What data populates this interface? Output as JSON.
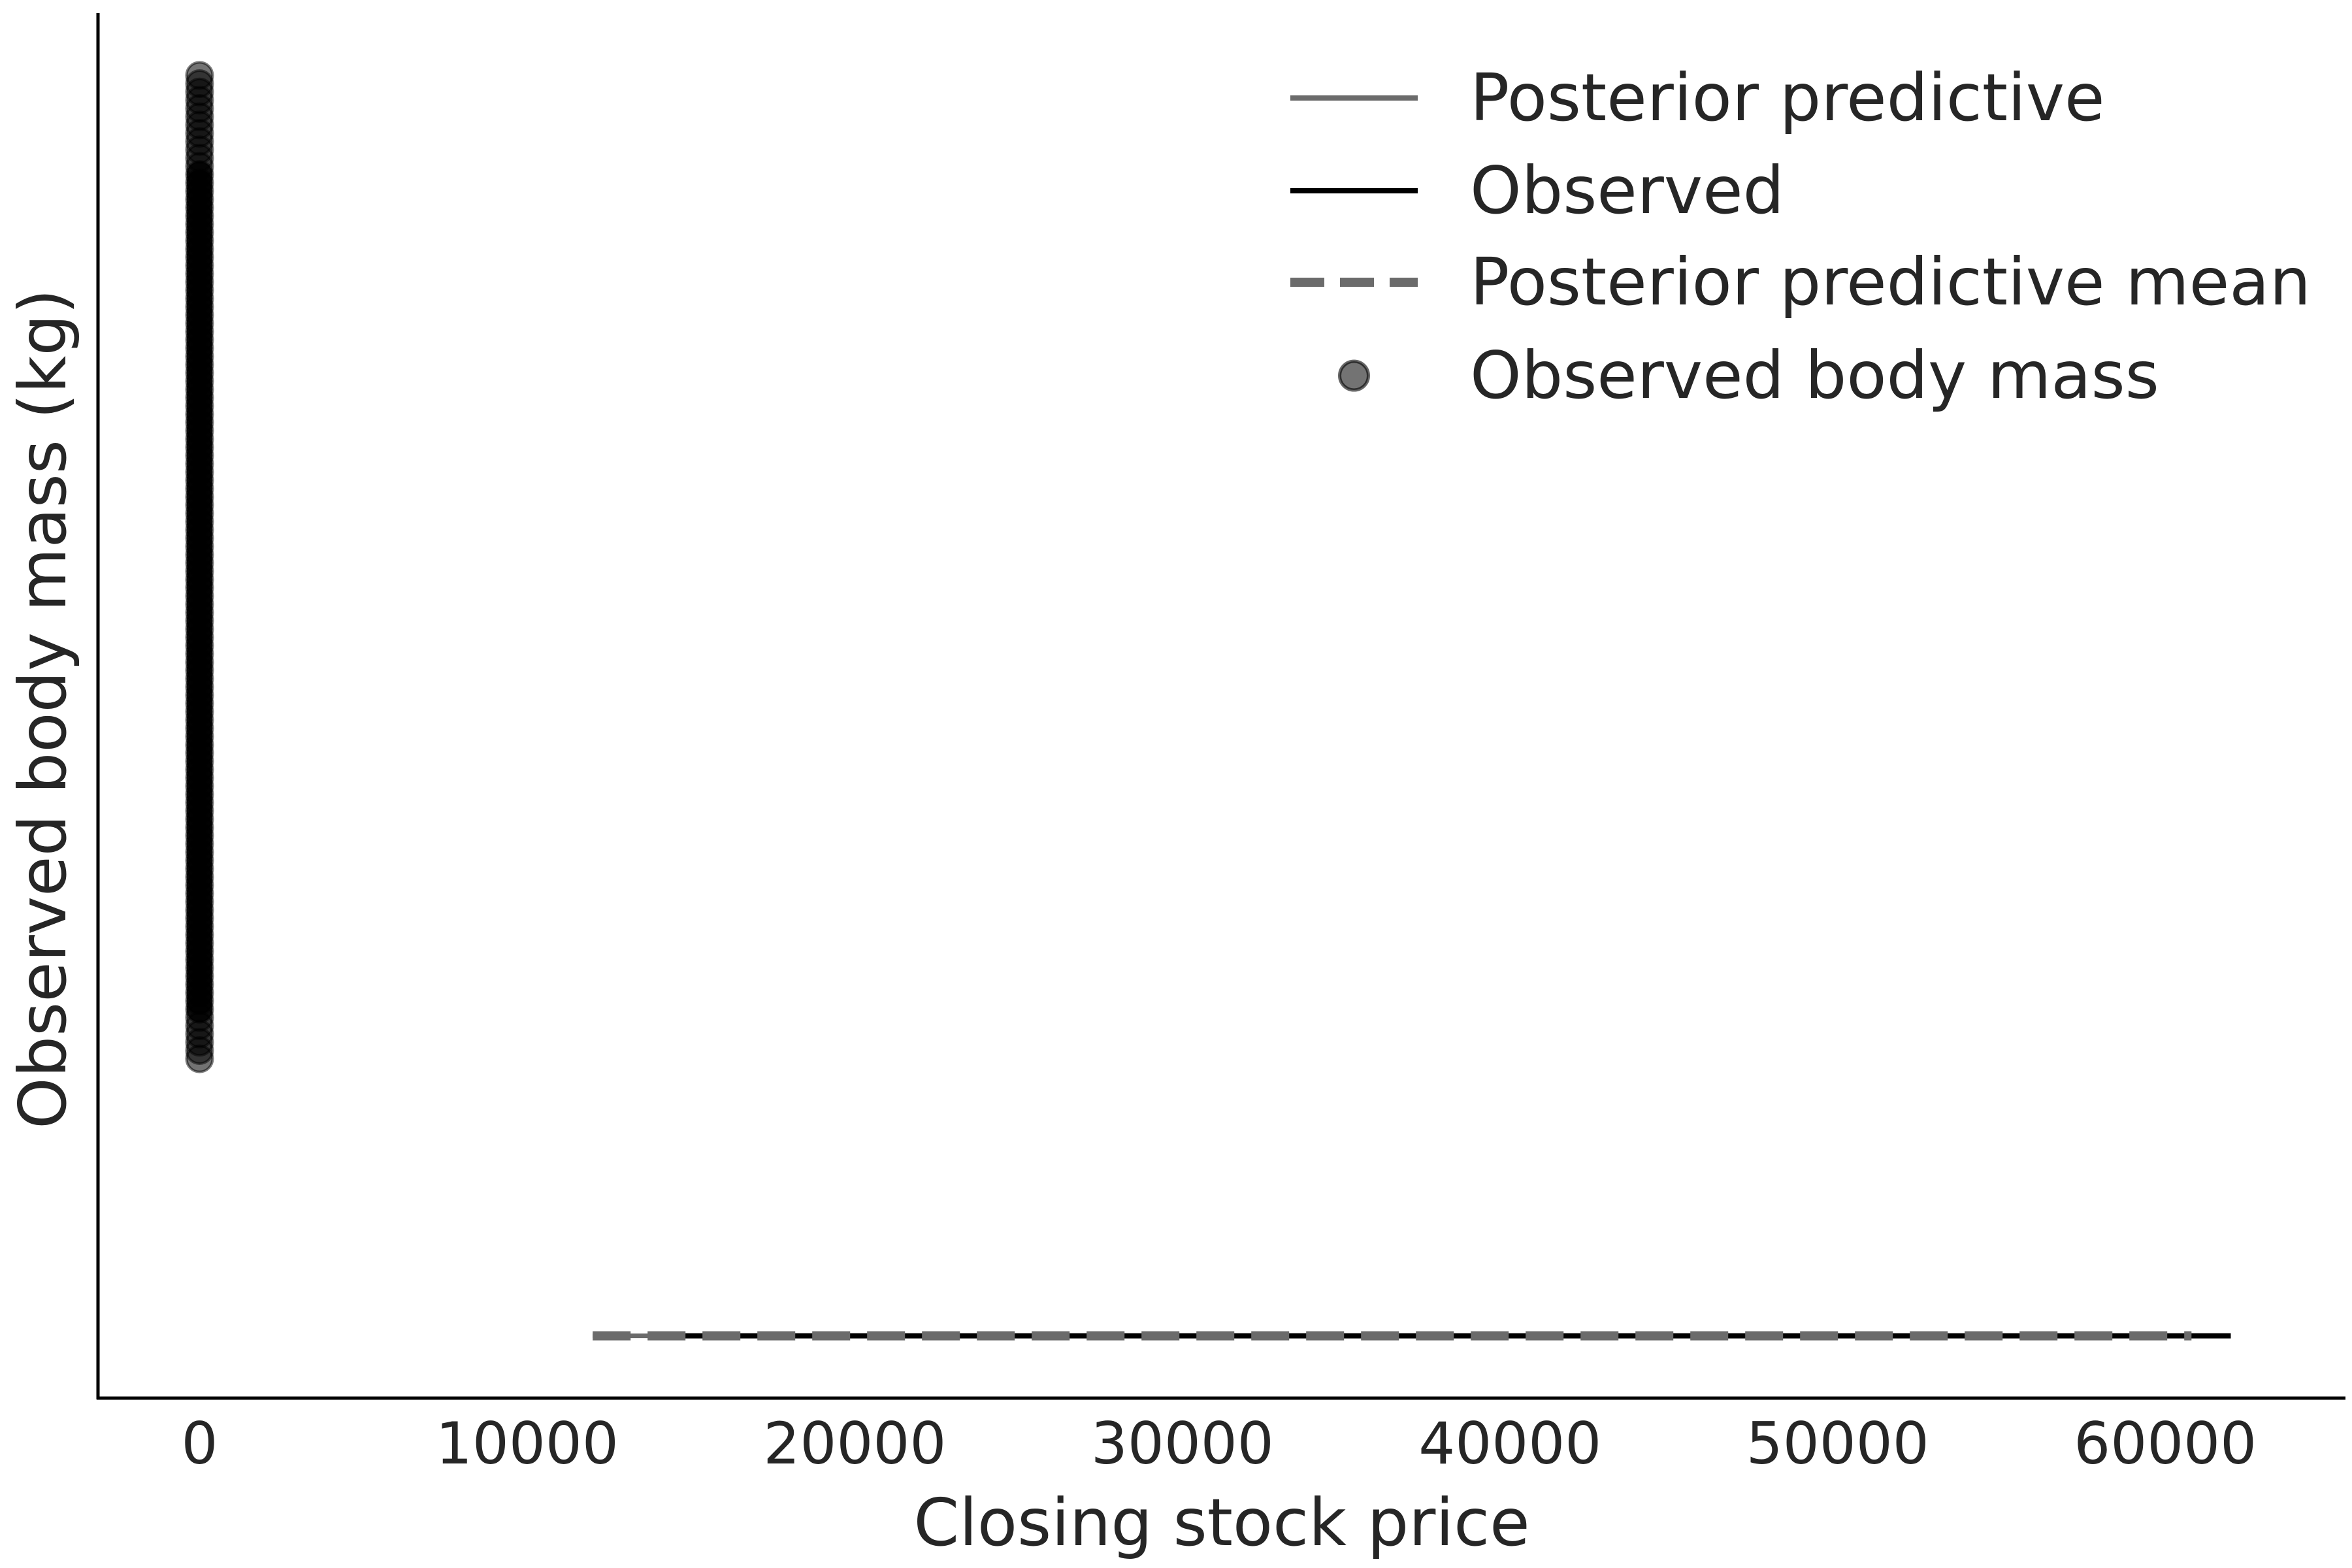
{
  "chart_data": {
    "type": "line",
    "title": "",
    "xlabel": "Closing stock price",
    "ylabel": "Observed body mass (kg)",
    "xlim": [
      -3100,
      65500
    ],
    "ylim": [
      0,
      1
    ],
    "x_ticks": [
      "0",
      "10000",
      "20000",
      "30000",
      "40000",
      "50000",
      "60000"
    ],
    "y_ticks": [],
    "grid": false,
    "legend_position": "top-right",
    "series": [
      {
        "name": "Posterior predictive",
        "style": "solid",
        "color": "#6b6b6b",
        "x": [
          12000,
          60500
        ],
        "y": [
          0.045,
          0.045
        ]
      },
      {
        "name": "Observed",
        "style": "solid",
        "color": "#000000",
        "x": [
          13700,
          62000
        ],
        "y": [
          0.045,
          0.045
        ]
      },
      {
        "name": "Posterior predictive mean",
        "style": "dashed",
        "color": "#6b6b6b",
        "x": [
          12000,
          60800
        ],
        "y": [
          0.045,
          0.045
        ]
      },
      {
        "name": "Observed body mass",
        "type": "scatter",
        "color": "#000000",
        "x_value": 0,
        "y_range": [
          0.245,
          0.955
        ],
        "count": 120
      }
    ]
  }
}
